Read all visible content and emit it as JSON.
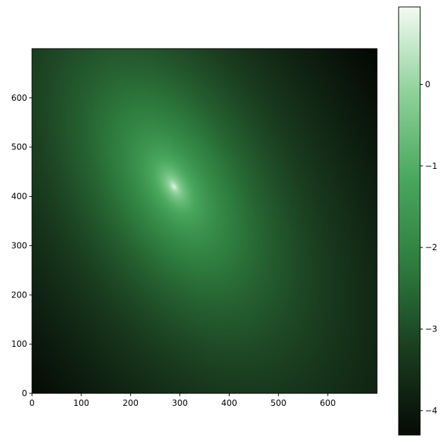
{
  "chart_data": {
    "type": "heatmap",
    "title": "",
    "xlabel": "",
    "ylabel": "",
    "xlim": [
      0,
      700
    ],
    "ylim": [
      0,
      700
    ],
    "x_ticks": [
      "0",
      "100",
      "200",
      "300",
      "400",
      "500",
      "600"
    ],
    "y_ticks": [
      "0",
      "100",
      "200",
      "300",
      "400",
      "500",
      "600"
    ],
    "colormap": "dark-to-green-to-white",
    "colormap_stops": [
      "#050a05",
      "#1a3d1f",
      "#2e7d3e",
      "#49a85d",
      "#8fd19a",
      "#f2fbf2"
    ],
    "value_range": [
      -4.3,
      0.95
    ],
    "peak": {
      "x": 288,
      "y": 420,
      "value": 0.95
    },
    "colorbar": {
      "ticks": [
        "0",
        "−1",
        "−2",
        "−3",
        "−4"
      ],
      "tick_values": [
        0,
        -1,
        -2,
        -3,
        -4
      ]
    }
  }
}
